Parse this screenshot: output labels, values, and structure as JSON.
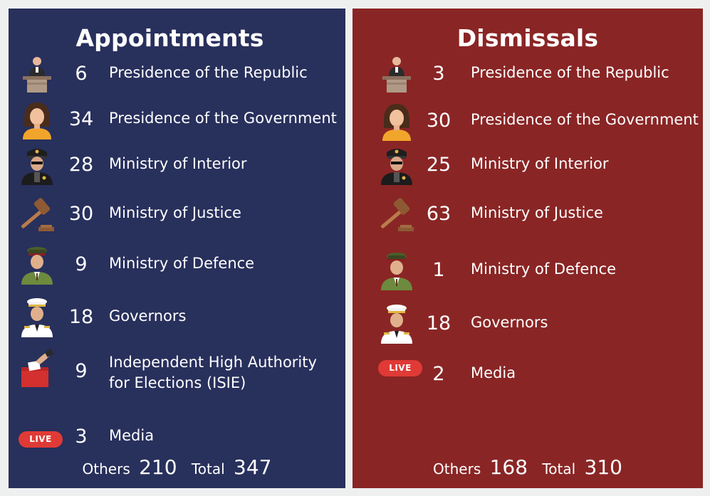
{
  "appointments": {
    "title": "Appointments",
    "rows": [
      {
        "icon": "podium-speaker-icon",
        "count": "6",
        "label": "Presidence of the Republic"
      },
      {
        "icon": "woman-avatar-icon",
        "count": "34",
        "label": "Presidence of the Government"
      },
      {
        "icon": "police-officer-icon",
        "count": "28",
        "label": "Ministry of Interior"
      },
      {
        "icon": "gavel-icon",
        "count": "30",
        "label": "Ministry of Justice"
      },
      {
        "icon": "army-officer-icon",
        "count": "9",
        "label": "Ministry of Defence"
      },
      {
        "icon": "governor-icon",
        "count": "18",
        "label": "Governors"
      },
      {
        "icon": "ballot-box-icon",
        "count": "9",
        "label_line1": "Independent High Authority",
        "label_line2": "for Elections (ISIE)"
      },
      {
        "icon": "live-badge-icon",
        "badge": "LIVE",
        "count": "3",
        "label": "Media"
      }
    ],
    "others_label": "Others",
    "others_value": "210",
    "total_label": "Total",
    "total_value": "347"
  },
  "dismissals": {
    "title": "Dismissals",
    "rows": [
      {
        "icon": "podium-speaker-icon",
        "count": "3",
        "label": "Presidence of the Republic"
      },
      {
        "icon": "woman-avatar-icon",
        "count": "30",
        "label": "Presidence of the Government"
      },
      {
        "icon": "police-officer-icon",
        "count": "25",
        "label": "Ministry of Interior"
      },
      {
        "icon": "gavel-icon",
        "count": "63",
        "label": "Ministry of Justice"
      },
      {
        "icon": "army-officer-icon",
        "count": "1",
        "label": "Ministry of Defence"
      },
      {
        "icon": "governor-icon",
        "count": "18",
        "label": "Governors"
      },
      {
        "icon": "live-badge-icon",
        "badge": "LIVE",
        "count": "2",
        "label": "Media"
      }
    ],
    "others_label": "Others",
    "others_value": "168",
    "total_label": "Total",
    "total_value": "310"
  },
  "colors": {
    "appointments_bg": "#28305c",
    "dismissals_bg": "#8a2525",
    "live_badge": "#e03a36"
  }
}
